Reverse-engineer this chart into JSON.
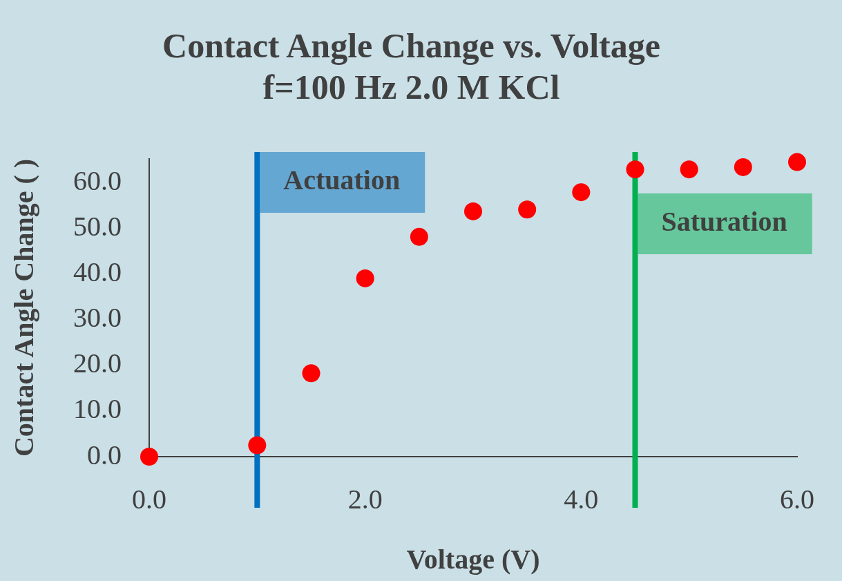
{
  "chart_data": {
    "type": "scatter",
    "title": "Contact Angle Change vs. Voltage",
    "subtitle": "f=100 Hz 2.0 M KCl",
    "xlabel": "Voltage (V)",
    "ylabel": "Contact Angle Change ( )",
    "x": [
      0,
      1,
      1.5,
      2,
      2.5,
      3,
      3.5,
      4,
      4.5,
      5,
      5.5,
      6
    ],
    "values": [
      0,
      2.5,
      18.3,
      39.1,
      48.2,
      53.8,
      54.2,
      58.0,
      63.0,
      63.0,
      63.5,
      64.6
    ],
    "color": "#ff0000",
    "marker": "circle",
    "grid": false,
    "legend": false,
    "xlim": [
      0,
      6
    ],
    "xticks": [
      {
        "value": 0,
        "label": "0.0"
      },
      {
        "value": 2,
        "label": "2.0"
      },
      {
        "value": 4,
        "label": "4.0"
      },
      {
        "value": 6,
        "label": "6.0"
      }
    ],
    "ylim": [
      0,
      65.3
    ],
    "yticks": [
      {
        "value": 0,
        "label": "0.0"
      },
      {
        "value": 10,
        "label": "10.0"
      },
      {
        "value": 20,
        "label": "20.0"
      },
      {
        "value": 30,
        "label": "30.0"
      },
      {
        "value": 40,
        "label": "40.0"
      },
      {
        "value": 50,
        "label": "50.0"
      },
      {
        "value": 60,
        "label": "60.0"
      }
    ],
    "ref_lines": [
      {
        "axis": "x",
        "value": 1.0,
        "label": "Actuation",
        "color": "#0070c0"
      },
      {
        "axis": "x",
        "value": 4.5,
        "label": "Saturation",
        "color": "#00b050"
      }
    ]
  }
}
